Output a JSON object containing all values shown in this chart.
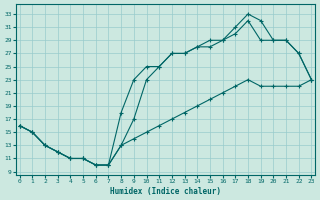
{
  "xlabel": "Humidex (Indice chaleur)",
  "bg_color": "#cce8e0",
  "line_color": "#006666",
  "grid_color": "#99cccc",
  "x_ticks": [
    0,
    1,
    2,
    3,
    4,
    5,
    6,
    7,
    8,
    9,
    10,
    11,
    12,
    13,
    14,
    15,
    16,
    17,
    18,
    19,
    20,
    21,
    22,
    23
  ],
  "y_ticks": [
    9,
    11,
    13,
    15,
    17,
    19,
    21,
    23,
    25,
    27,
    29,
    31,
    33
  ],
  "xlim": [
    -0.3,
    23.3
  ],
  "ylim": [
    8.5,
    34.5
  ],
  "upper_x": [
    0,
    1,
    2,
    3,
    4,
    5,
    6,
    7,
    8,
    9,
    10,
    11,
    12,
    13,
    14,
    15,
    16,
    17,
    18,
    19,
    20,
    21,
    22,
    23
  ],
  "upper_y": [
    16,
    15,
    13,
    12,
    11,
    11,
    10,
    10,
    18,
    23,
    25,
    25,
    27,
    27,
    28,
    29,
    29,
    31,
    33,
    32,
    29,
    29,
    27,
    23
  ],
  "mid_x": [
    0,
    1,
    2,
    3,
    4,
    5,
    6,
    7,
    8,
    9,
    10,
    11,
    12,
    13,
    14,
    15,
    16,
    17,
    18,
    19,
    20,
    21,
    22,
    23
  ],
  "mid_y": [
    16,
    15,
    13,
    12,
    11,
    11,
    10,
    10,
    13,
    17,
    23,
    25,
    27,
    27,
    28,
    28,
    29,
    30,
    32,
    29,
    29,
    29,
    27,
    23
  ],
  "low_x": [
    0,
    1,
    2,
    3,
    4,
    5,
    6,
    7,
    8,
    9,
    10,
    11,
    12,
    13,
    14,
    15,
    16,
    17,
    18,
    19,
    20,
    21,
    22,
    23
  ],
  "low_y": [
    16,
    15,
    13,
    12,
    11,
    11,
    10,
    10,
    13,
    14,
    15,
    16,
    17,
    18,
    19,
    20,
    21,
    22,
    23,
    22,
    22,
    22,
    22,
    23
  ]
}
